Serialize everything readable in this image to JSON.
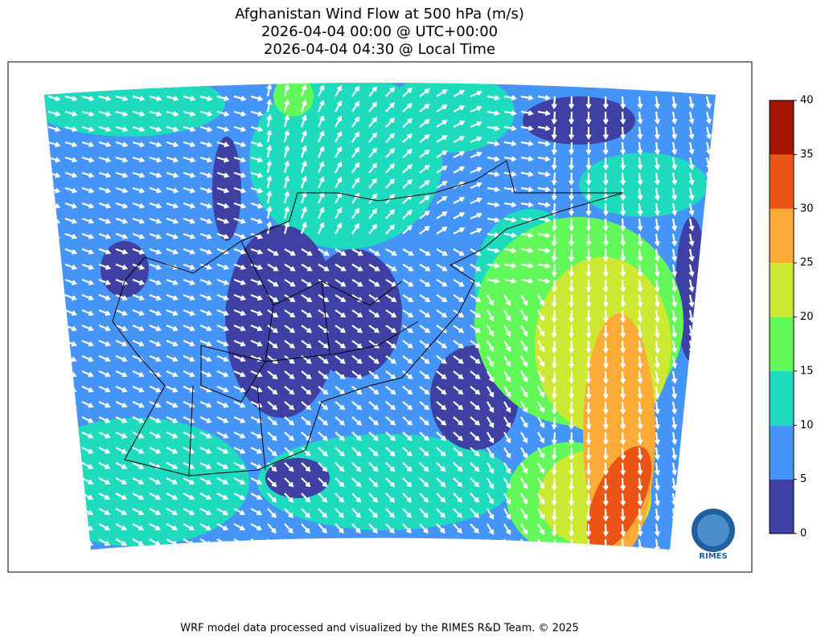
{
  "header": {
    "title_lines": [
      "Afghanistan Wind Flow at 500 hPa (m/s)",
      "2026-04-04 00:00 @ UTC+00:00",
      "2026-04-04 04:30 @ Local Time"
    ]
  },
  "colorbar": {
    "ticks": [
      0,
      5,
      10,
      15,
      20,
      25,
      30,
      35,
      40
    ],
    "colors": [
      "#3e40a3",
      "#4594f8",
      "#1edbbd",
      "#63f85a",
      "#cce832",
      "#fdab37",
      "#ec5415",
      "#a21505"
    ]
  },
  "logo": {
    "text": "RIMES"
  },
  "footer": {
    "text": "WRF model data processed and visualized by the RIMES R&D Team. © 2025"
  }
}
